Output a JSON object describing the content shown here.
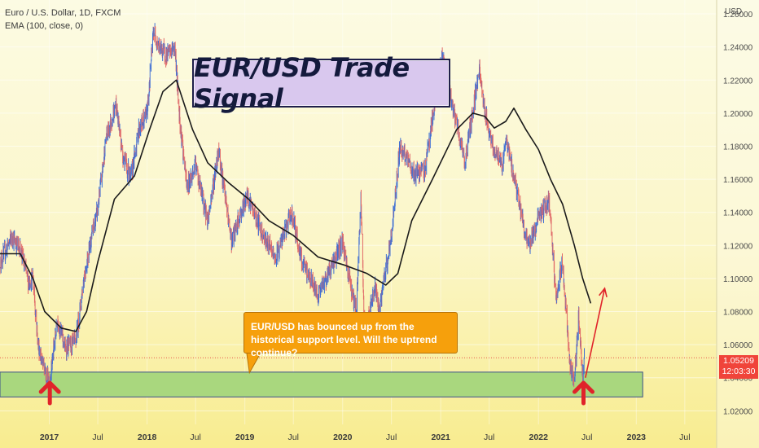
{
  "legend": {
    "symbol_line": "Euro / U.S. Dollar, 1D, FXCM",
    "indicator_line": "EMA (100, close, 0)"
  },
  "title_banner": "EUR/USD Trade Signal",
  "callout_text": "EUR/USD has bounced up from the historical support level. Will the uptrend continue?",
  "price_tag": {
    "price": "1.05209",
    "countdown": "12:03:30"
  },
  "colors": {
    "candle_up": "#3f6fd4",
    "candle_down": "#e06868",
    "ema": "#1b1b1b",
    "support_fill": "#a9d77e",
    "support_border": "#3a4f8a",
    "arrow": "#e0232a",
    "projection": "#e0232a",
    "callout_bg": "#f6a00c",
    "price_tag_bg": "#f0443a"
  },
  "chart_data": {
    "type": "line",
    "title": "EUR/USD Trade Signal",
    "symbol": "Euro / U.S. Dollar, 1D, FXCM",
    "y_axis_title": "USD",
    "ylim": [
      1.0118,
      1.2684
    ],
    "y_ticks": [
      1.02,
      1.04,
      1.06,
      1.08,
      1.1,
      1.12,
      1.14,
      1.16,
      1.18,
      1.2,
      1.22,
      1.24,
      1.26
    ],
    "y_tick_labels": [
      "1.02000",
      "1.04000",
      "1.06000",
      "1.08000",
      "1.10000",
      "1.12000",
      "1.14000",
      "1.16000",
      "1.18000",
      "1.20000",
      "1.22000",
      "1.24000",
      "1.26000"
    ],
    "x_ticks": [
      {
        "label": "2017",
        "date": "2017-01-01",
        "bold": true
      },
      {
        "label": "Jul",
        "date": "2017-07-01",
        "bold": false
      },
      {
        "label": "2018",
        "date": "2018-01-01",
        "bold": true
      },
      {
        "label": "Jul",
        "date": "2018-07-01",
        "bold": false
      },
      {
        "label": "2019",
        "date": "2019-01-01",
        "bold": true
      },
      {
        "label": "Jul",
        "date": "2019-07-01",
        "bold": false
      },
      {
        "label": "2020",
        "date": "2020-01-01",
        "bold": true
      },
      {
        "label": "Jul",
        "date": "2020-07-01",
        "bold": false
      },
      {
        "label": "2021",
        "date": "2021-01-01",
        "bold": true
      },
      {
        "label": "Jul",
        "date": "2021-07-01",
        "bold": false
      },
      {
        "label": "2022",
        "date": "2022-01-01",
        "bold": true
      },
      {
        "label": "Jul",
        "date": "2022-07-01",
        "bold": false
      },
      {
        "label": "2023",
        "date": "2023-01-01",
        "bold": true
      },
      {
        "label": "Jul",
        "date": "2023-07-01",
        "bold": false
      }
    ],
    "xlim": [
      "2016-07-01",
      "2023-10-28"
    ],
    "last_price": 1.05209,
    "price_path": [
      {
        "date": "2016-07-01",
        "close": 1.11
      },
      {
        "date": "2016-08-15",
        "close": 1.125
      },
      {
        "date": "2016-09-15",
        "close": 1.118
      },
      {
        "date": "2016-10-15",
        "close": 1.098
      },
      {
        "date": "2016-11-01",
        "close": 1.1
      },
      {
        "date": "2016-11-20",
        "close": 1.06
      },
      {
        "date": "2016-12-20",
        "close": 1.04
      },
      {
        "date": "2017-01-03",
        "close": 1.039
      },
      {
        "date": "2017-02-01",
        "close": 1.075
      },
      {
        "date": "2017-03-01",
        "close": 1.058
      },
      {
        "date": "2017-04-10",
        "close": 1.062
      },
      {
        "date": "2017-05-10",
        "close": 1.1
      },
      {
        "date": "2017-06-01",
        "close": 1.12
      },
      {
        "date": "2017-07-01",
        "close": 1.142
      },
      {
        "date": "2017-08-01",
        "close": 1.185
      },
      {
        "date": "2017-09-08",
        "close": 1.205
      },
      {
        "date": "2017-10-01",
        "close": 1.175
      },
      {
        "date": "2017-11-01",
        "close": 1.16
      },
      {
        "date": "2017-12-01",
        "close": 1.19
      },
      {
        "date": "2018-01-01",
        "close": 1.2
      },
      {
        "date": "2018-01-25",
        "close": 1.25
      },
      {
        "date": "2018-02-15",
        "close": 1.24
      },
      {
        "date": "2018-03-15",
        "close": 1.235
      },
      {
        "date": "2018-04-15",
        "close": 1.24
      },
      {
        "date": "2018-05-01",
        "close": 1.2
      },
      {
        "date": "2018-05-29",
        "close": 1.155
      },
      {
        "date": "2018-07-01",
        "close": 1.168
      },
      {
        "date": "2018-08-15",
        "close": 1.135
      },
      {
        "date": "2018-09-25",
        "close": 1.178
      },
      {
        "date": "2018-11-12",
        "close": 1.122
      },
      {
        "date": "2019-01-10",
        "close": 1.15
      },
      {
        "date": "2019-03-01",
        "close": 1.13
      },
      {
        "date": "2019-04-25",
        "close": 1.112
      },
      {
        "date": "2019-06-25",
        "close": 1.14
      },
      {
        "date": "2019-08-01",
        "close": 1.11
      },
      {
        "date": "2019-10-01",
        "close": 1.09
      },
      {
        "date": "2019-12-31",
        "close": 1.122
      },
      {
        "date": "2020-02-20",
        "close": 1.08
      },
      {
        "date": "2020-03-09",
        "close": 1.148
      },
      {
        "date": "2020-03-23",
        "close": 1.064
      },
      {
        "date": "2020-05-01",
        "close": 1.095
      },
      {
        "date": "2020-05-15",
        "close": 1.08
      },
      {
        "date": "2020-07-01",
        "close": 1.125
      },
      {
        "date": "2020-08-01",
        "close": 1.18
      },
      {
        "date": "2020-09-25",
        "close": 1.163
      },
      {
        "date": "2020-11-01",
        "close": 1.165
      },
      {
        "date": "2021-01-06",
        "close": 1.234
      },
      {
        "date": "2021-03-31",
        "close": 1.17
      },
      {
        "date": "2021-05-25",
        "close": 1.227
      },
      {
        "date": "2021-06-15",
        "close": 1.2
      },
      {
        "date": "2021-07-15",
        "close": 1.18
      },
      {
        "date": "2021-08-20",
        "close": 1.168
      },
      {
        "date": "2021-09-01",
        "close": 1.185
      },
      {
        "date": "2021-10-12",
        "close": 1.153
      },
      {
        "date": "2021-11-24",
        "close": 1.118
      },
      {
        "date": "2022-01-01",
        "close": 1.137
      },
      {
        "date": "2022-02-10",
        "close": 1.147
      },
      {
        "date": "2022-03-07",
        "close": 1.087
      },
      {
        "date": "2022-03-31",
        "close": 1.11
      },
      {
        "date": "2022-04-28",
        "close": 1.05
      },
      {
        "date": "2022-05-13",
        "close": 1.035
      },
      {
        "date": "2022-05-31",
        "close": 1.078
      },
      {
        "date": "2022-06-10",
        "close": 1.052
      },
      {
        "date": "2022-06-15",
        "close": 1.038
      },
      {
        "date": "2022-06-21",
        "close": 1.052
      }
    ],
    "ema_100": [
      {
        "date": "2016-07-01",
        "value": 1.115
      },
      {
        "date": "2016-09-15",
        "value": 1.115
      },
      {
        "date": "2016-11-01",
        "value": 1.1
      },
      {
        "date": "2016-12-15",
        "value": 1.08
      },
      {
        "date": "2017-02-15",
        "value": 1.07
      },
      {
        "date": "2017-04-10",
        "value": 1.068
      },
      {
        "date": "2017-05-20",
        "value": 1.08
      },
      {
        "date": "2017-07-01",
        "value": 1.11
      },
      {
        "date": "2017-09-01",
        "value": 1.148
      },
      {
        "date": "2017-11-15",
        "value": 1.162
      },
      {
        "date": "2018-01-10",
        "value": 1.19
      },
      {
        "date": "2018-03-01",
        "value": 1.213
      },
      {
        "date": "2018-04-20",
        "value": 1.22
      },
      {
        "date": "2018-06-20",
        "value": 1.19
      },
      {
        "date": "2018-08-15",
        "value": 1.17
      },
      {
        "date": "2018-11-01",
        "value": 1.158
      },
      {
        "date": "2019-01-15",
        "value": 1.148
      },
      {
        "date": "2019-04-01",
        "value": 1.135
      },
      {
        "date": "2019-07-01",
        "value": 1.126
      },
      {
        "date": "2019-10-01",
        "value": 1.113
      },
      {
        "date": "2020-01-10",
        "value": 1.108
      },
      {
        "date": "2020-04-01",
        "value": 1.103
      },
      {
        "date": "2020-06-10",
        "value": 1.096
      },
      {
        "date": "2020-07-25",
        "value": 1.103
      },
      {
        "date": "2020-09-15",
        "value": 1.135
      },
      {
        "date": "2020-12-01",
        "value": 1.16
      },
      {
        "date": "2021-03-01",
        "value": 1.19
      },
      {
        "date": "2021-05-01",
        "value": 1.2
      },
      {
        "date": "2021-06-15",
        "value": 1.198
      },
      {
        "date": "2021-07-20",
        "value": 1.191
      },
      {
        "date": "2021-09-01",
        "value": 1.195
      },
      {
        "date": "2021-10-01",
        "value": 1.203
      },
      {
        "date": "2021-11-15",
        "value": 1.19
      },
      {
        "date": "2022-01-01",
        "value": 1.178
      },
      {
        "date": "2022-02-15",
        "value": 1.16
      },
      {
        "date": "2022-04-01",
        "value": 1.145
      },
      {
        "date": "2022-05-15",
        "value": 1.12
      },
      {
        "date": "2022-06-15",
        "value": 1.1
      },
      {
        "date": "2022-07-15",
        "value": 1.085
      }
    ],
    "support_zone": {
      "from": 1.0284,
      "to": 1.0434,
      "start": "2016-07-01",
      "end": "2023-01-25"
    },
    "price_line": 1.05209,
    "projection": {
      "from": {
        "date": "2022-06-25",
        "value": 1.04
      },
      "to": {
        "date": "2022-09-05",
        "value": 1.094
      }
    },
    "buy_arrows": [
      {
        "date": "2017-01-03",
        "value": 1.03
      },
      {
        "date": "2022-06-18",
        "value": 1.03
      }
    ],
    "callout_anchor": {
      "date": "2019-01-18",
      "value": 1.043
    }
  }
}
